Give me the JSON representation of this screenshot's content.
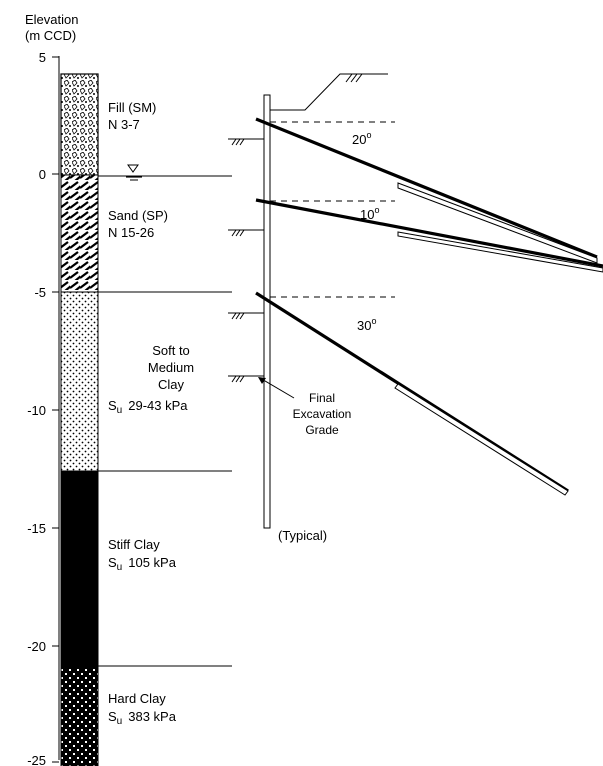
{
  "axis": {
    "title_line1": "Elevation",
    "title_line2": "(m CCD)",
    "ticks": [
      "5",
      "0",
      "-5",
      "-10",
      "-15",
      "-20",
      "-25"
    ]
  },
  "layers": [
    {
      "name": "Fill (SM)",
      "detail": "N 3-7"
    },
    {
      "name": "Sand (SP)",
      "detail": "N 15-26"
    },
    {
      "name_lines": [
        "Soft to",
        "Medium",
        "Clay"
      ],
      "detail_prefix": "S",
      "detail_sub": "u",
      "detail_value": "29-43 kPa"
    },
    {
      "name": "Stiff Clay",
      "detail_prefix": "S",
      "detail_sub": "u",
      "detail_value": "105 kPa"
    },
    {
      "name": "Hard Clay",
      "detail_prefix": "S",
      "detail_sub": "u",
      "detail_value": "383 kPa"
    }
  ],
  "anchors": [
    {
      "angle": "20",
      "unit": "o"
    },
    {
      "angle": "10",
      "unit": "o"
    },
    {
      "angle": "30",
      "unit": "o"
    }
  ],
  "wall": {
    "note_line1": "Final",
    "note_line2": "Excavation",
    "note_line3": "Grade",
    "typical": "(Typical)"
  }
}
